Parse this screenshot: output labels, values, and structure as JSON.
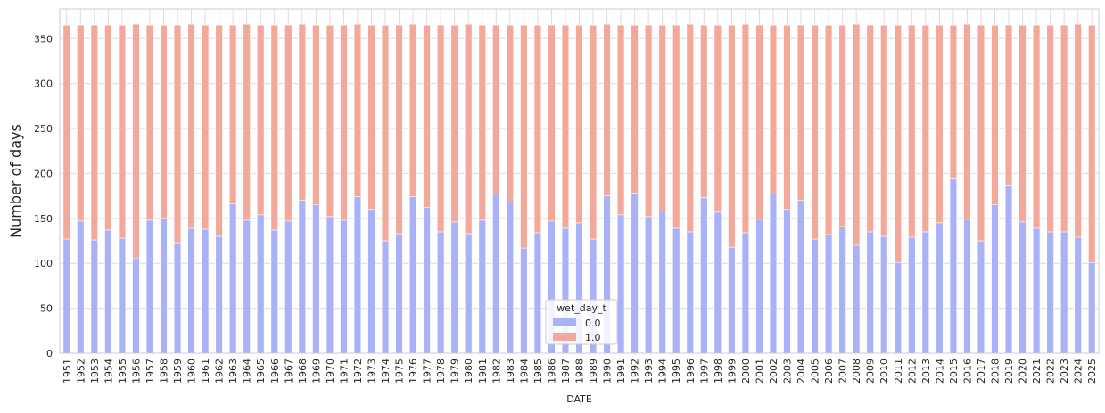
{
  "chart_data": {
    "type": "bar",
    "stacked": true,
    "title": "",
    "xlabel": "DATE",
    "ylabel": "Number of days",
    "ylim": [
      0,
      383
    ],
    "yticks": [
      0,
      50,
      100,
      150,
      200,
      250,
      300,
      350
    ],
    "grid": true,
    "legend": {
      "title": "wet_day_t",
      "placement": "lower-center"
    },
    "categories": [
      "1951",
      "1952",
      "1953",
      "1954",
      "1955",
      "1956",
      "1957",
      "1958",
      "1959",
      "1960",
      "1961",
      "1962",
      "1963",
      "1964",
      "1965",
      "1966",
      "1967",
      "1968",
      "1969",
      "1970",
      "1971",
      "1972",
      "1973",
      "1974",
      "1975",
      "1976",
      "1977",
      "1978",
      "1979",
      "1980",
      "1981",
      "1982",
      "1983",
      "1984",
      "1985",
      "1986",
      "1987",
      "1988",
      "1989",
      "1990",
      "1991",
      "1992",
      "1993",
      "1994",
      "1995",
      "1996",
      "1997",
      "1998",
      "1999",
      "2000",
      "2001",
      "2002",
      "2003",
      "2004",
      "2005",
      "2006",
      "2007",
      "2008",
      "2009",
      "2010",
      "2011",
      "2012",
      "2013",
      "2014",
      "2015",
      "2016",
      "2017",
      "2018",
      "2019",
      "2020",
      "2021",
      "2022",
      "2023",
      "2024",
      "2025"
    ],
    "series": [
      {
        "name": "0.0",
        "color": "#a9b1f7",
        "values": [
          127,
          147,
          126,
          137,
          128,
          106,
          148,
          150,
          123,
          139,
          138,
          130,
          166,
          148,
          154,
          137,
          147,
          170,
          165,
          152,
          148,
          174,
          160,
          125,
          133,
          174,
          162,
          135,
          146,
          133,
          148,
          177,
          168,
          117,
          134,
          147,
          139,
          145,
          127,
          175,
          154,
          178,
          152,
          158,
          139,
          135,
          173,
          157,
          118,
          134,
          149,
          177,
          160,
          170,
          127,
          132,
          141,
          120,
          135,
          130,
          101,
          129,
          135,
          145,
          194,
          149,
          125,
          165,
          187,
          146,
          139,
          135,
          135,
          129,
          101
        ]
      },
      {
        "name": "1.0",
        "color": "#f2a89a",
        "values": [
          238,
          218,
          239,
          228,
          237,
          260,
          217,
          215,
          242,
          227,
          227,
          235,
          199,
          218,
          211,
          228,
          218,
          196,
          200,
          213,
          217,
          192,
          205,
          240,
          232,
          192,
          203,
          230,
          219,
          233,
          217,
          188,
          197,
          248,
          231,
          218,
          226,
          220,
          238,
          191,
          211,
          187,
          213,
          207,
          226,
          231,
          192,
          208,
          247,
          232,
          216,
          188,
          205,
          195,
          238,
          233,
          224,
          246,
          230,
          235,
          264,
          236,
          230,
          220,
          171,
          217,
          240,
          200,
          178,
          219,
          226,
          230,
          230,
          237,
          264
        ]
      }
    ]
  }
}
